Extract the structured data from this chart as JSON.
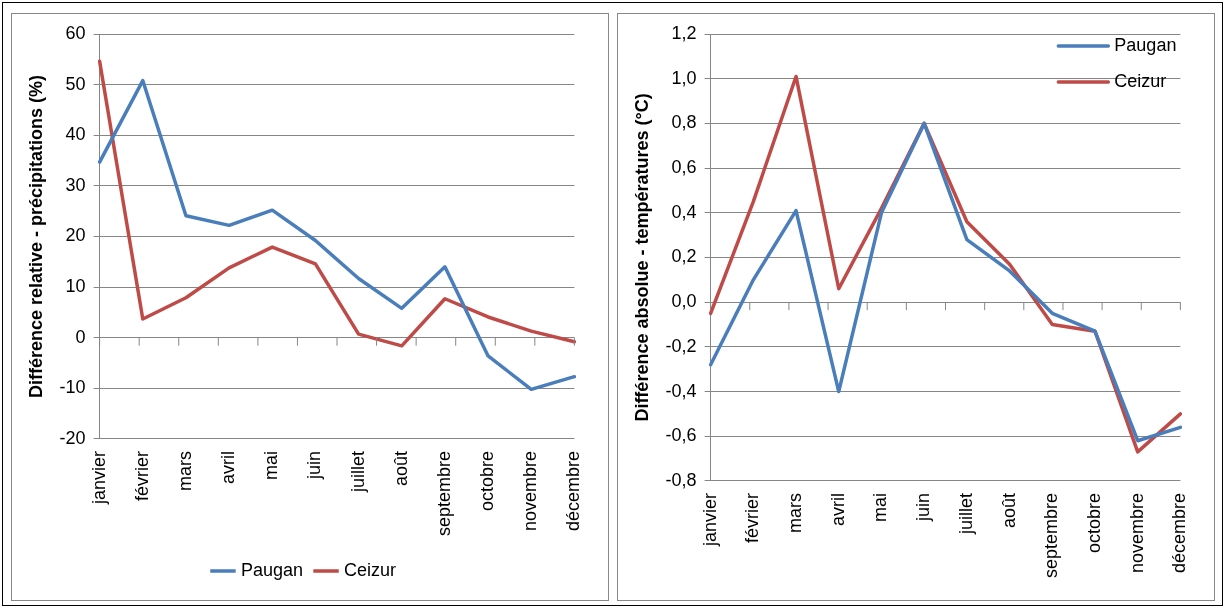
{
  "chart_data": [
    {
      "type": "line",
      "ylabel": "Différence relative - précipitations (%)",
      "categories": [
        "janvier",
        "février",
        "mars",
        "avril",
        "mai",
        "juin",
        "juillet",
        "août",
        "septembre",
        "octobre",
        "novembre",
        "décembre"
      ],
      "series": [
        {
          "name": "Paugan",
          "color": "#4a7ebb",
          "values": [
            34.7,
            50.8,
            24.1,
            22.2,
            25.2,
            19.2,
            11.7,
            5.8,
            14,
            -3.6,
            -10.2,
            -7.7
          ]
        },
        {
          "name": "Ceizur",
          "color": "#be4b48",
          "values": [
            54.6,
            3.7,
            7.9,
            13.8,
            17.9,
            14.6,
            0.7,
            -1.6,
            7.7,
            4.1,
            1.3,
            -0.8
          ]
        }
      ],
      "ylim": [
        -20,
        60
      ],
      "yticks": [
        -20,
        -10,
        0,
        10,
        20,
        30,
        40,
        50,
        60
      ],
      "grid": "y",
      "legend": "bottom",
      "marker": "none",
      "line_style": "solid"
    },
    {
      "type": "line",
      "ylabel": "Différence absolue - températures (°C)",
      "categories": [
        "janvier",
        "février",
        "mars",
        "avril",
        "mai",
        "juin",
        "juillet",
        "août",
        "septembre",
        "octobre",
        "novembre",
        "décembre"
      ],
      "series": [
        {
          "name": "Paugan",
          "color": "#4a7ebb",
          "values": [
            -0.28,
            0.1,
            0.41,
            -0.4,
            0.4,
            0.8,
            0.28,
            0.14,
            -0.05,
            -0.13,
            -0.62,
            -0.56
          ]
        },
        {
          "name": "Ceizur",
          "color": "#be4b48",
          "values": [
            -0.05,
            0.45,
            1.01,
            0.06,
            0.42,
            0.8,
            0.36,
            0.17,
            -0.1,
            -0.13,
            -0.67,
            -0.5
          ]
        }
      ],
      "ylim": [
        -0.8,
        1.2
      ],
      "yticks": [
        {
          "value": -0.8,
          "label": "-0,8"
        },
        {
          "value": -0.6,
          "label": "-0,6"
        },
        {
          "value": -0.4,
          "label": "-0,4"
        },
        {
          "value": -0.2,
          "label": "-0,2"
        },
        {
          "value": 0,
          "label": "0,0"
        },
        {
          "value": 0.2,
          "label": "0,2"
        },
        {
          "value": 0.4,
          "label": "0,4"
        },
        {
          "value": 0.6,
          "label": "0,6"
        },
        {
          "value": 0.8,
          "label": "0,8"
        },
        {
          "value": 1,
          "label": "1,0"
        },
        {
          "value": 1.2,
          "label": "1,2"
        }
      ],
      "grid": "y",
      "legend": "top right",
      "marker": "none",
      "line_style": "solid"
    }
  ]
}
